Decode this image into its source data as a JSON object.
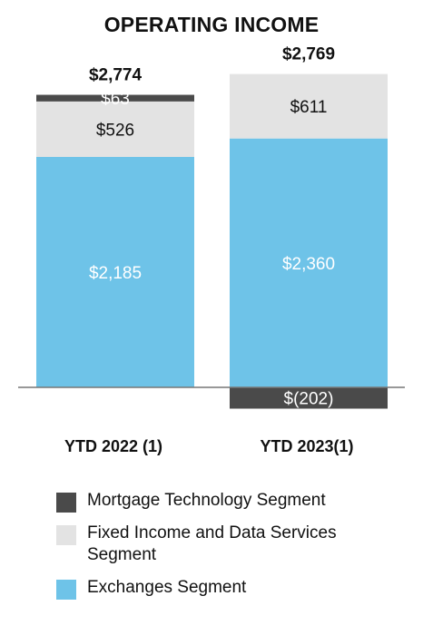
{
  "chart_data": {
    "type": "stacked_bar",
    "title": "OPERATING INCOME",
    "categories": [
      "YTD 2022 (1)",
      "YTD 2023(1)"
    ],
    "totals": [
      "$2,774",
      "$2,769"
    ],
    "series": [
      {
        "name": "Exchanges Segment",
        "color": "#6ec3e8",
        "label_color": "#ffffff",
        "values": [
          2185,
          2360
        ],
        "labels": [
          "$2,185",
          "$2,360"
        ]
      },
      {
        "name": "Fixed Income and Data Services Segment",
        "color": "#e3e3e3",
        "label_color": "#111111",
        "values": [
          526,
          611
        ],
        "labels": [
          "$526",
          "$611"
        ]
      },
      {
        "name": "Mortgage Technology Segment",
        "color": "#4a4a4a",
        "label_color": "#ffffff",
        "values": [
          63,
          -202
        ],
        "labels": [
          "$63",
          "$(202)"
        ]
      }
    ]
  },
  "legend": [
    {
      "label": "Mortgage Technology Segment",
      "color": "#4a4a4a"
    },
    {
      "label": "Fixed Income and Data Services Segment",
      "color": "#e3e3e3"
    },
    {
      "label": "Exchanges Segment",
      "color": "#6ec3e8"
    }
  ]
}
